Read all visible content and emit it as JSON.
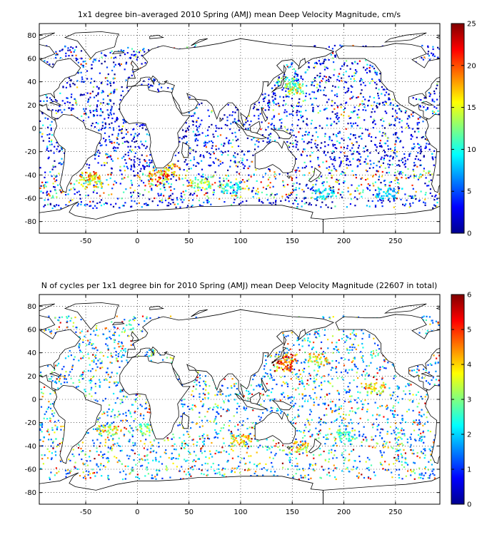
{
  "chart_data": [
    {
      "type": "heatmap",
      "title": "1x1 degree bin–averaged 2010 Spring (AMJ) mean Deep Velocity Magnitude, cm/s",
      "xlabel": "",
      "ylabel": "",
      "xlim": [
        -95,
        293
      ],
      "ylim": [
        -90,
        90
      ],
      "xticks": [
        -50,
        0,
        50,
        100,
        150,
        200,
        250
      ],
      "yticks": [
        80,
        60,
        40,
        20,
        0,
        -20,
        -40,
        -60,
        -80
      ],
      "grid": "dotted",
      "colorbar": {
        "min": 0,
        "max": 25,
        "ticks": [
          0,
          5,
          10,
          15,
          20,
          25
        ],
        "colormap": "jet",
        "placement": "right"
      },
      "clusters": [
        {
          "lon": -50,
          "lat": -42,
          "value": 18
        },
        {
          "lon": -45,
          "lat": -45,
          "value": 16
        },
        {
          "lon": 20,
          "lat": -40,
          "value": 20
        },
        {
          "lon": 30,
          "lat": -35,
          "value": 17
        },
        {
          "lon": 60,
          "lat": -48,
          "value": 14
        },
        {
          "lon": 90,
          "lat": -50,
          "value": 10
        },
        {
          "lon": 150,
          "lat": 35,
          "value": 15
        },
        {
          "lon": 145,
          "lat": 40,
          "value": 12
        },
        {
          "lon": 180,
          "lat": -55,
          "value": 9
        },
        {
          "lon": 240,
          "lat": -55,
          "value": 8
        }
      ]
    },
    {
      "type": "heatmap",
      "title": "N of cycles per 1x1 degree bin for 2010 Spring (AMJ) mean Deep Velocity Magnitude (22607 in total)",
      "xlabel": "",
      "ylabel": "",
      "xlim": [
        -95,
        293
      ],
      "ylim": [
        -90,
        90
      ],
      "xticks": [
        -50,
        0,
        50,
        100,
        150,
        200,
        250
      ],
      "yticks": [
        80,
        60,
        40,
        20,
        0,
        -20,
        -40,
        -60,
        -80
      ],
      "grid": "dotted",
      "total_cycles": 22607,
      "colorbar": {
        "min": 0,
        "max": 6,
        "ticks": [
          0,
          1,
          2,
          3,
          4,
          5,
          6
        ],
        "colormap": "jet",
        "placement": "right"
      },
      "clusters": [
        {
          "lon": 140,
          "lat": 30,
          "value": 5
        },
        {
          "lon": 145,
          "lat": 35,
          "value": 5
        },
        {
          "lon": 175,
          "lat": 35,
          "value": 4
        },
        {
          "lon": 230,
          "lat": 10,
          "value": 4
        },
        {
          "lon": -30,
          "lat": -25,
          "value": 4
        },
        {
          "lon": 10,
          "lat": -25,
          "value": 3
        },
        {
          "lon": 100,
          "lat": -35,
          "value": 4
        },
        {
          "lon": 155,
          "lat": -40,
          "value": 4
        },
        {
          "lon": 200,
          "lat": -30,
          "value": 3
        }
      ]
    }
  ]
}
